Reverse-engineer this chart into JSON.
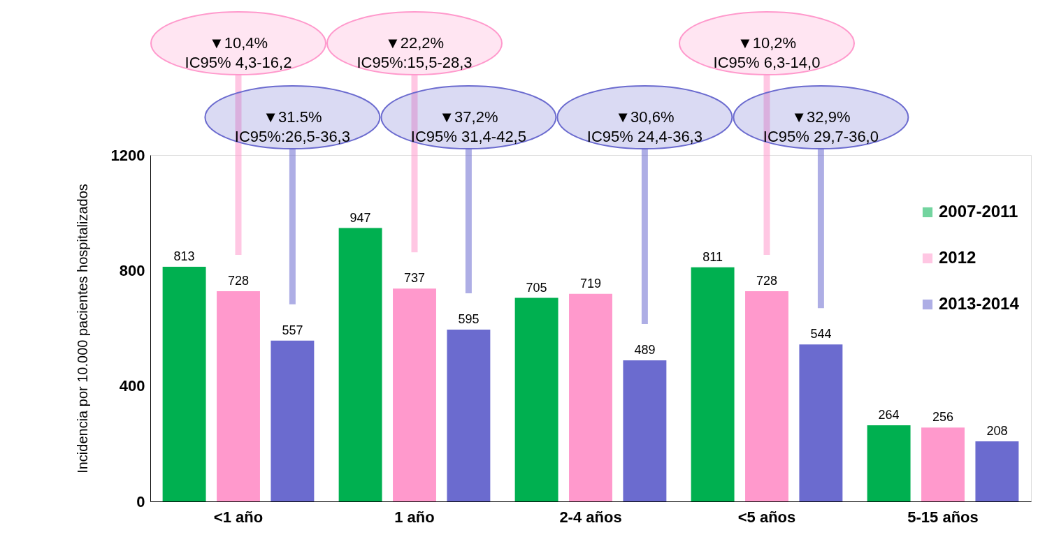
{
  "chart_data": {
    "type": "bar",
    "ylabel": "Incidencia por 10.000 pacientes hospitalizados",
    "categories": [
      "<1 año",
      "1 año",
      "2-4 años",
      "<5 años",
      "5-15 años"
    ],
    "series": [
      {
        "name": "2007-2011",
        "color": "#00b050",
        "values": [
          813,
          947,
          705,
          811,
          264
        ]
      },
      {
        "name": "2012",
        "color": "#ff99cc",
        "values": [
          728,
          737,
          719,
          728,
          256
        ]
      },
      {
        "name": "2013-2014",
        "color": "#6b6bcf",
        "values": [
          557,
          595,
          489,
          544,
          208
        ]
      }
    ],
    "ylim": [
      0,
      1200
    ],
    "yticks": [
      0,
      400,
      800,
      1200
    ],
    "grid": false,
    "legend": "right",
    "data_labels": true,
    "annotations": [
      "▼10,4%\nIC95% 4,3-16,2",
      "▼31.5%\nIC95%:26,5-36,3",
      "▼22,2%\nIC95%:15,5-28,3",
      "▼37,2%\nIC95% 31,4-42,5",
      "▼30,6%\nIC95% 24,4-36,3",
      "▼10,2%\nIC95% 6,3-14,0",
      "▼32,9%\nIC95% 29,7-36,0"
    ]
  }
}
